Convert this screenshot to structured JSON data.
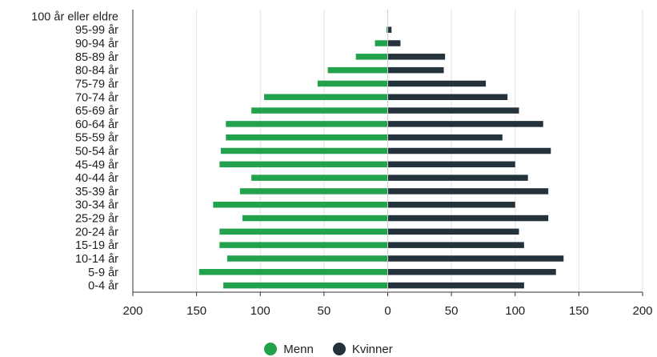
{
  "chart_data": {
    "type": "bar",
    "orientation": "horizontal",
    "layout": "population-pyramid",
    "categories": [
      "0-4 år",
      "5-9 år",
      "10-14 år",
      "15-19 år",
      "20-24 år",
      "25-29 år",
      "30-34 år",
      "35-39 år",
      "40-44 år",
      "45-49 år",
      "50-54 år",
      "55-59 år",
      "60-64 år",
      "65-69 år",
      "70-74 år",
      "75-79 år",
      "80-84 år",
      "85-89 år",
      "90-94 år",
      "95-99 år",
      "100 år eller eldre"
    ],
    "series": [
      {
        "name": "Menn",
        "color": "#23a24d",
        "side": "left",
        "values": [
          129,
          148,
          126,
          132,
          132,
          114,
          137,
          116,
          107,
          132,
          131,
          127,
          127,
          107,
          97,
          55,
          47,
          25,
          10,
          1,
          0
        ]
      },
      {
        "name": "Kvinner",
        "color": "#24333b",
        "side": "right",
        "values": [
          107,
          132,
          138,
          107,
          103,
          126,
          100,
          126,
          110,
          100,
          128,
          90,
          122,
          103,
          94,
          77,
          44,
          45,
          10,
          3,
          0
        ]
      }
    ],
    "xlim": [
      -200,
      200
    ],
    "xticks": [
      -200,
      -150,
      -100,
      -50,
      0,
      50,
      100,
      150,
      200
    ],
    "xtick_labels": [
      "200",
      "150",
      "100",
      "50",
      "0",
      "50",
      "100",
      "150",
      "200"
    ],
    "grid": "vertical",
    "legend_position": "bottom-center"
  },
  "legend": {
    "items": [
      {
        "label": "Menn",
        "color": "#23a24d"
      },
      {
        "label": "Kvinner",
        "color": "#24333b"
      }
    ]
  }
}
